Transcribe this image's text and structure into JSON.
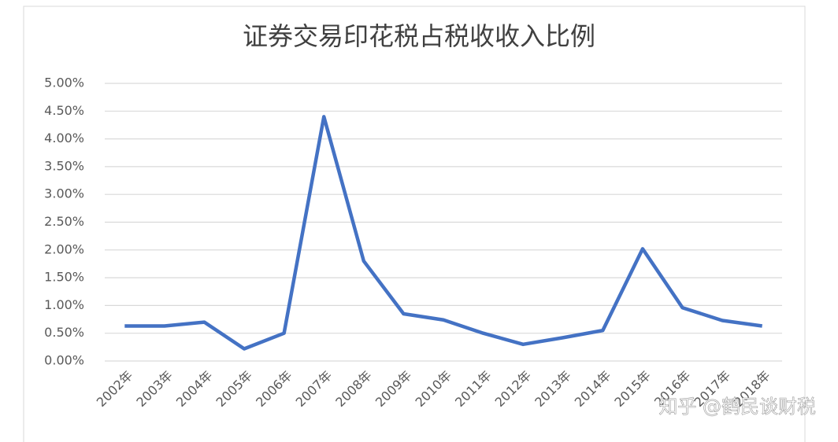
{
  "chart_data": {
    "type": "line",
    "title": "证券交易印花税占税收收入比例",
    "categories": [
      "2002年",
      "2003年",
      "2004年",
      "2005年",
      "2006年",
      "2007年",
      "2008年",
      "2009年",
      "2010年",
      "2011年",
      "2012年",
      "2013年",
      "2014年",
      "2015年",
      "2016年",
      "2017年",
      "2018年"
    ],
    "series": [
      {
        "name": "证券交易印花税占税收收入比例",
        "color": "#4472c4",
        "values": [
          0.63,
          0.63,
          0.7,
          0.22,
          0.5,
          4.4,
          1.8,
          0.85,
          0.74,
          0.5,
          0.3,
          0.42,
          0.55,
          2.02,
          0.96,
          0.73,
          0.63
        ]
      }
    ],
    "ylim": [
      0,
      5
    ],
    "yticks": [
      {
        "value": 0,
        "label": "0.00%"
      },
      {
        "value": 0.5,
        "label": "0.50%"
      },
      {
        "value": 1,
        "label": "1.00%"
      },
      {
        "value": 1.5,
        "label": "1.50%"
      },
      {
        "value": 2,
        "label": "2.00%"
      },
      {
        "value": 2.5,
        "label": "2.50%"
      },
      {
        "value": 3,
        "label": "3.00%"
      },
      {
        "value": 3.5,
        "label": "3.50%"
      },
      {
        "value": 4,
        "label": "4.00%"
      },
      {
        "value": 4.5,
        "label": "4.50%"
      },
      {
        "value": 5,
        "label": "5.00%"
      }
    ],
    "grid": true,
    "legend": false,
    "watermark": "知乎 @鹤民谈财税"
  }
}
